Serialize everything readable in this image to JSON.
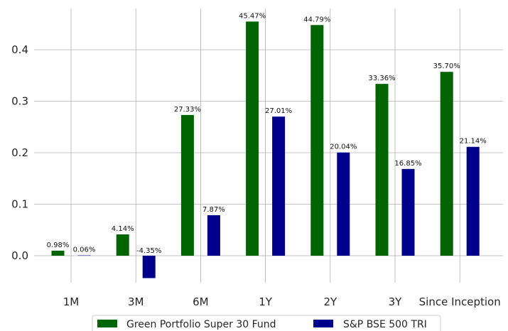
{
  "chart_data": {
    "type": "bar",
    "categories": [
      "1M",
      "3M",
      "6M",
      "1Y",
      "2Y",
      "3Y",
      "Since Inception"
    ],
    "series": [
      {
        "name": "Green Portfolio Super 30 Fund",
        "color": "#006400",
        "values": [
          0.0098,
          0.0414,
          0.2733,
          0.4547,
          0.4479,
          0.3336,
          0.357
        ],
        "labels": [
          "0.98%",
          "4.14%",
          "27.33%",
          "45.47%",
          "44.79%",
          "33.36%",
          "35.70%"
        ]
      },
      {
        "name": "S&P BSE 500 TRI",
        "color": "#00008B",
        "values": [
          0.0006,
          -0.0435,
          0.0787,
          0.2701,
          0.2004,
          0.1685,
          0.2114
        ],
        "labels": [
          "0.06%",
          "-4.35%",
          "7.87%",
          "27.01%",
          "20.04%",
          "16.85%",
          "21.14%"
        ]
      }
    ],
    "yticks": [
      0.0,
      0.1,
      0.2,
      0.3,
      0.4
    ],
    "ytick_labels": [
      "0.0",
      "0.1",
      "0.2",
      "0.3",
      "0.4"
    ],
    "ylim": [
      -0.065,
      0.48
    ],
    "grid": true,
    "legend_position": "bottom"
  }
}
